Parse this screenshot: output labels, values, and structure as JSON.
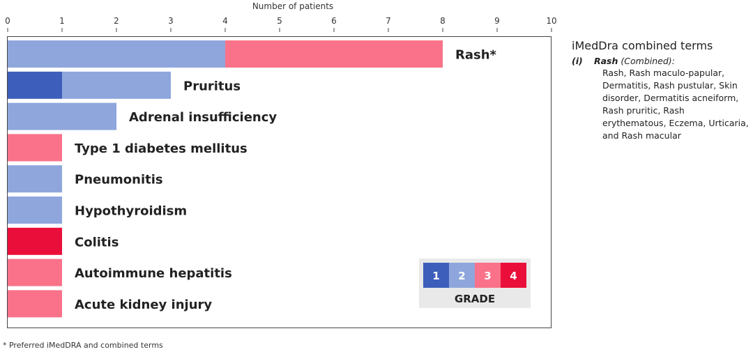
{
  "chart_data": {
    "type": "bar",
    "orientation": "horizontal",
    "stacked": true,
    "xlabel": "Number of patients",
    "xlim": [
      0,
      10
    ],
    "x_ticks": [
      "0",
      "1",
      "2",
      "3",
      "4",
      "5",
      "6",
      "7",
      "8",
      "9",
      "10"
    ],
    "categories": [
      "Rash*",
      "Pruritus",
      "Adrenal insufficiency",
      "Type 1 diabetes mellitus",
      "Pneumonitis",
      "Hypothyroidism",
      "Colitis",
      "Autoimmune hepatitis",
      "Acute kidney injury"
    ],
    "series": [
      {
        "name": "1",
        "color": "#3d5fbb",
        "values": [
          0,
          1,
          0,
          0,
          0,
          0,
          0,
          0,
          0
        ]
      },
      {
        "name": "2",
        "color": "#8ea6dc",
        "values": [
          4,
          2,
          2,
          0,
          1,
          1,
          0,
          0,
          0
        ]
      },
      {
        "name": "3",
        "color": "#f97289",
        "values": [
          4,
          0,
          0,
          1,
          0,
          0,
          0,
          1,
          1
        ]
      },
      {
        "name": "4",
        "color": "#ea0f3b",
        "values": [
          0,
          0,
          0,
          0,
          0,
          0,
          1,
          0,
          0
        ]
      }
    ],
    "legend": {
      "title": "GRADE",
      "placement": "bottom-right"
    },
    "grid": false
  },
  "side_panel": {
    "title": "iMedDra combined terms",
    "item_number": "(i)",
    "item_term": "Rash",
    "item_qualifier": "(Combined):",
    "item_list": "Rash, Rash maculo-papular, Dermatitis, Rash pustular,  Skin disorder, Dermatitis acneiform, Rash pruritic, Rash erythematous, Eczema, Urticaria, and Rash macular"
  },
  "footnote": "* Preferred iMedDRA and combined terms"
}
